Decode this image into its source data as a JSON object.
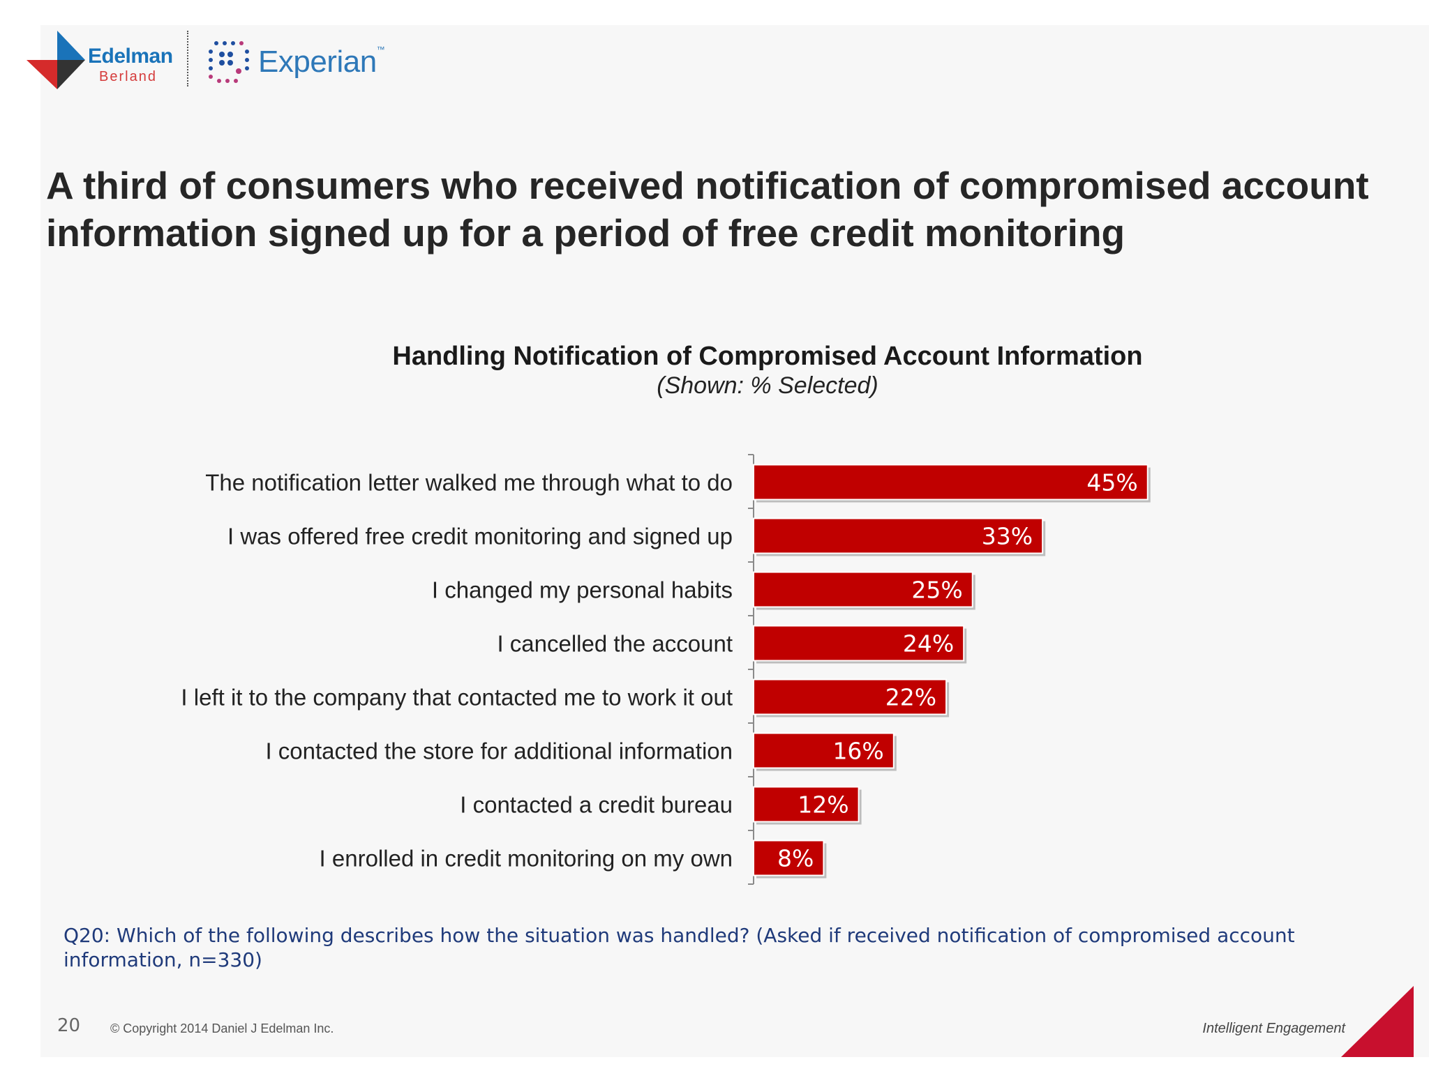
{
  "brand": {
    "edelman_name": "Edelman",
    "edelman_sub": "Berland",
    "experian_name": "Experian",
    "experian_tm": "™",
    "colors": {
      "red": "#c00000",
      "blue": "#1a73b9",
      "question_blue": "#1f3a7a"
    }
  },
  "headline": "A third of consumers who received notification of compromised account information signed up for a period of free credit monitoring",
  "chart_data": {
    "type": "bar",
    "orientation": "horizontal",
    "title": "Handling Notification of Compromised Account Information",
    "subtitle": "(Shown: % Selected)",
    "categories": [
      "The notification letter walked me through what to do",
      "I was offered free credit monitoring and signed up",
      "I changed my personal habits",
      "I cancelled the account",
      "I left it to the company that contacted me to work it out",
      "I contacted the store for additional information",
      "I contacted a credit bureau",
      "I enrolled in credit monitoring on my own"
    ],
    "values": [
      45,
      33,
      25,
      24,
      22,
      16,
      12,
      8
    ],
    "value_labels": [
      "45%",
      "33%",
      "25%",
      "24%",
      "22%",
      "16%",
      "12%",
      "8%"
    ],
    "xlim": [
      0,
      100
    ],
    "grid": false,
    "legend": "none",
    "bar_color": "#c00000"
  },
  "footnote": {
    "question": "Q20: Which of the following describes how the situation was handled? (Asked if received notification of compromised account information, n=330)"
  },
  "footer": {
    "page_number": "20",
    "copyright": "© Copyright 2014 Daniel J Edelman Inc.",
    "tagline": "Intelligent Engagement"
  }
}
